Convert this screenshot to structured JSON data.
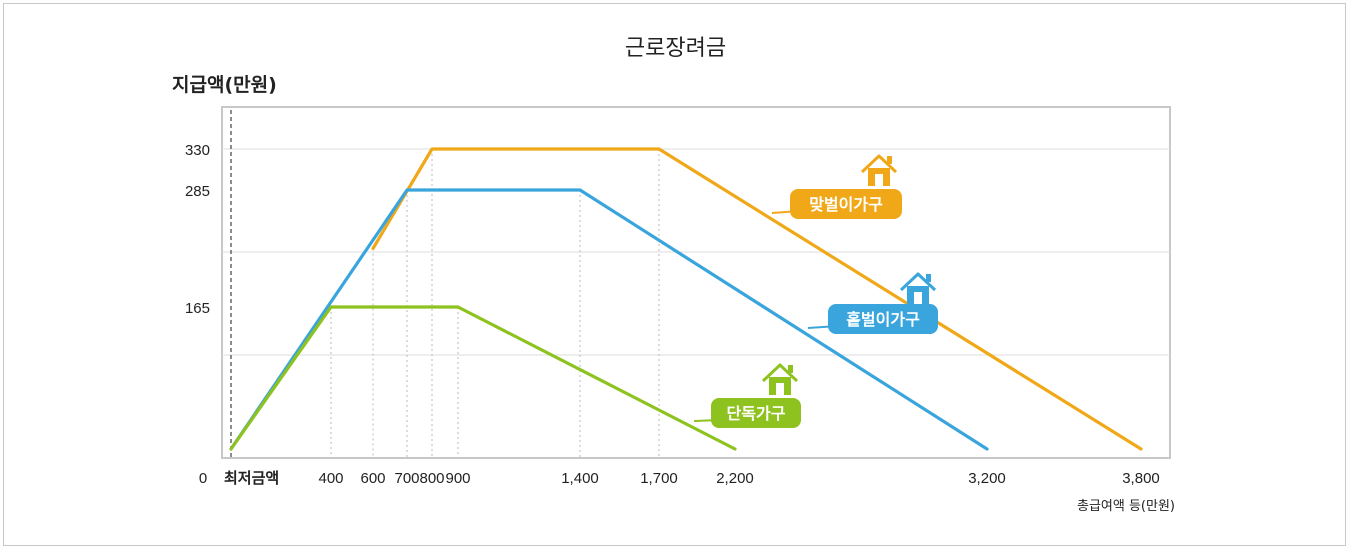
{
  "chart_data": {
    "type": "line",
    "title": "근로장려금",
    "ylabel": "지급액(만원)",
    "xlabel": "총급여액 등(만원)",
    "x_min_label": "최저금액",
    "x_ticks": [
      0,
      400,
      600,
      700,
      800,
      900,
      1400,
      1700,
      2200,
      3200,
      3800
    ],
    "x_tick_labels": [
      "0",
      "400",
      "600",
      "700",
      "800",
      "900",
      "1,400",
      "1,700",
      "2,200",
      "3,200",
      "3,800"
    ],
    "y_ticks": [
      165,
      285,
      330
    ],
    "y_tick_labels": [
      "165",
      "285",
      "330"
    ],
    "xlim": [
      0,
      3800
    ],
    "ylim": [
      0,
      330
    ],
    "series": [
      {
        "name": "단독가구",
        "color": "#8dc21f",
        "points": [
          [
            0,
            0
          ],
          [
            400,
            165
          ],
          [
            900,
            165
          ],
          [
            2200,
            0
          ]
        ]
      },
      {
        "name": "홑벌이가구",
        "color": "#3aa5dc",
        "points": [
          [
            0,
            0
          ],
          [
            700,
            285
          ],
          [
            1400,
            285
          ],
          [
            3200,
            0
          ]
        ]
      },
      {
        "name": "맞벌이가구",
        "color": "#f0a818",
        "points": [
          [
            600,
            225
          ],
          [
            800,
            330
          ],
          [
            1700,
            330
          ],
          [
            3800,
            0
          ]
        ]
      }
    ]
  }
}
